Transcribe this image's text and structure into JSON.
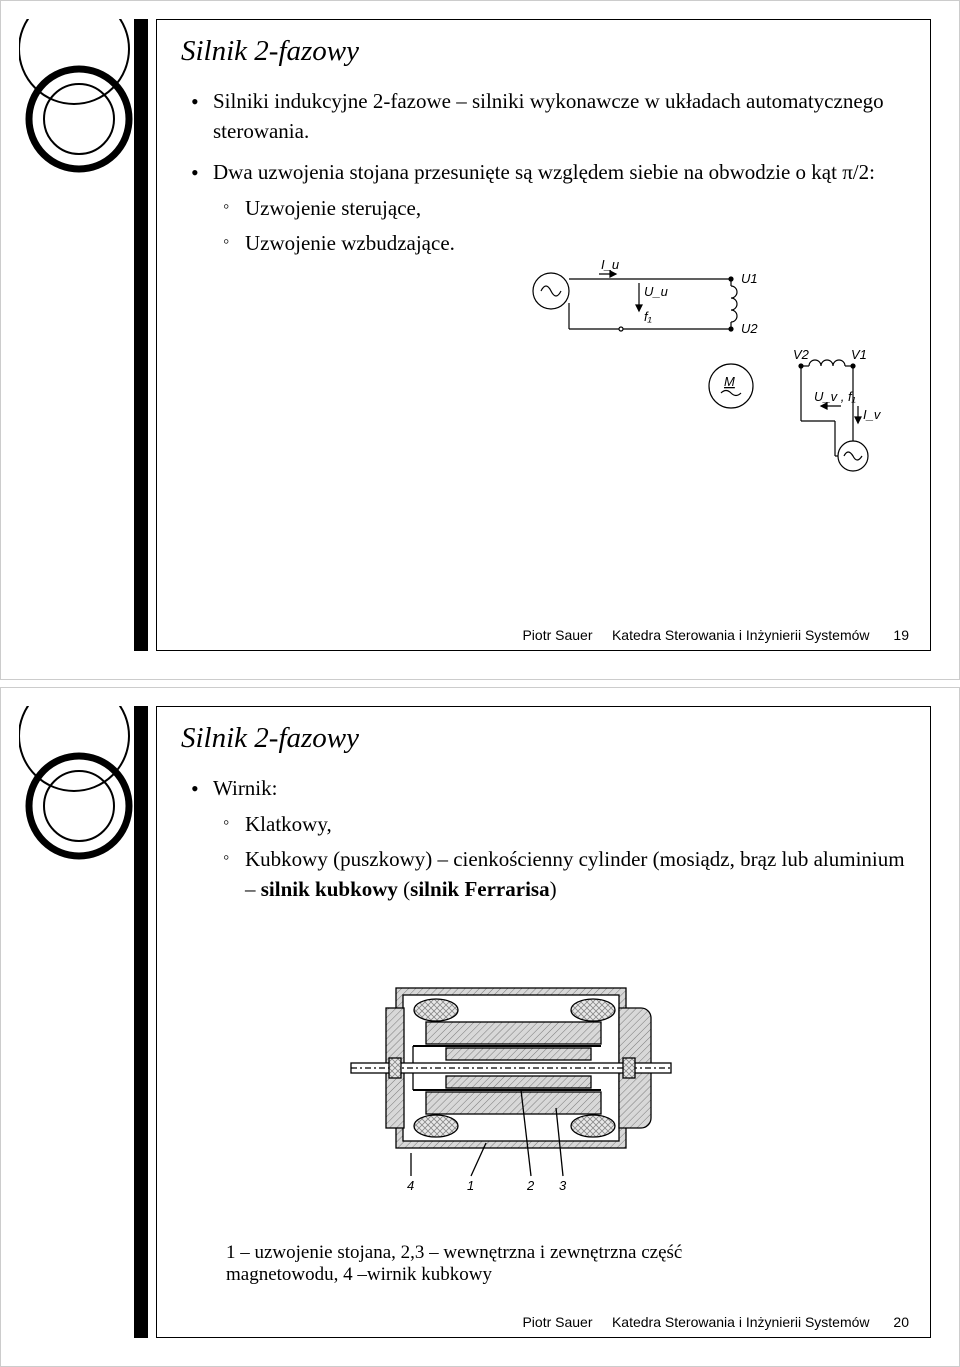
{
  "slide19": {
    "title": "Silnik 2-fazowy",
    "bullets": [
      {
        "text": "Silniki indukcyjne 2-fazowe – silniki wykonawcze w układach automatycznego sterowania."
      },
      {
        "text": "Dwa uzwojenia stojana przesunięte są względem siebie na obwodzie o kąt π/2:",
        "sub": [
          "Uzwojenie sterujące,",
          "Uzwojenie wzbudzające."
        ]
      }
    ],
    "circuit": {
      "labels": {
        "Iu": "I_u",
        "Uu": "U_u",
        "f1": "f₁",
        "U1": "U1",
        "U2": "U2",
        "M": "M",
        "V2": "V2",
        "V1": "V1",
        "Uvf1": "U_v , f₁",
        "Iv": "I_v"
      },
      "stroke": "#000000",
      "line_width": 1.2
    },
    "footer_author": "Piotr Sauer",
    "footer_dept": "Katedra Sterowania i Inżynierii Systemów",
    "page": "19"
  },
  "slide20": {
    "title": "Silnik 2-fazowy",
    "bullets": [
      {
        "text": "Wirnik:",
        "sub": [
          "Klatkowy,",
          "Kubkowy (puszkowy) – cienkościenny cylinder (mosiądz, brąz lub aluminium – <b>silnik kubkowy</b> (<b>silnik Ferrarisa</b>)"
        ]
      }
    ],
    "motor_diagram": {
      "labels": {
        "1": "1",
        "2": "2",
        "3": "3",
        "4": "4"
      },
      "stroke": "#000000",
      "hatch_gray": "#9a9a9a"
    },
    "caption": "1 – uzwojenie stojana, 2,3 – wewnętrzna i zewnętrzna część magnetowodu, 4 –wirnik kubkowy",
    "footer_author": "Piotr Sauer",
    "footer_dept": "Katedra Sterowania i Inżynierii Systemów",
    "page": "20"
  }
}
